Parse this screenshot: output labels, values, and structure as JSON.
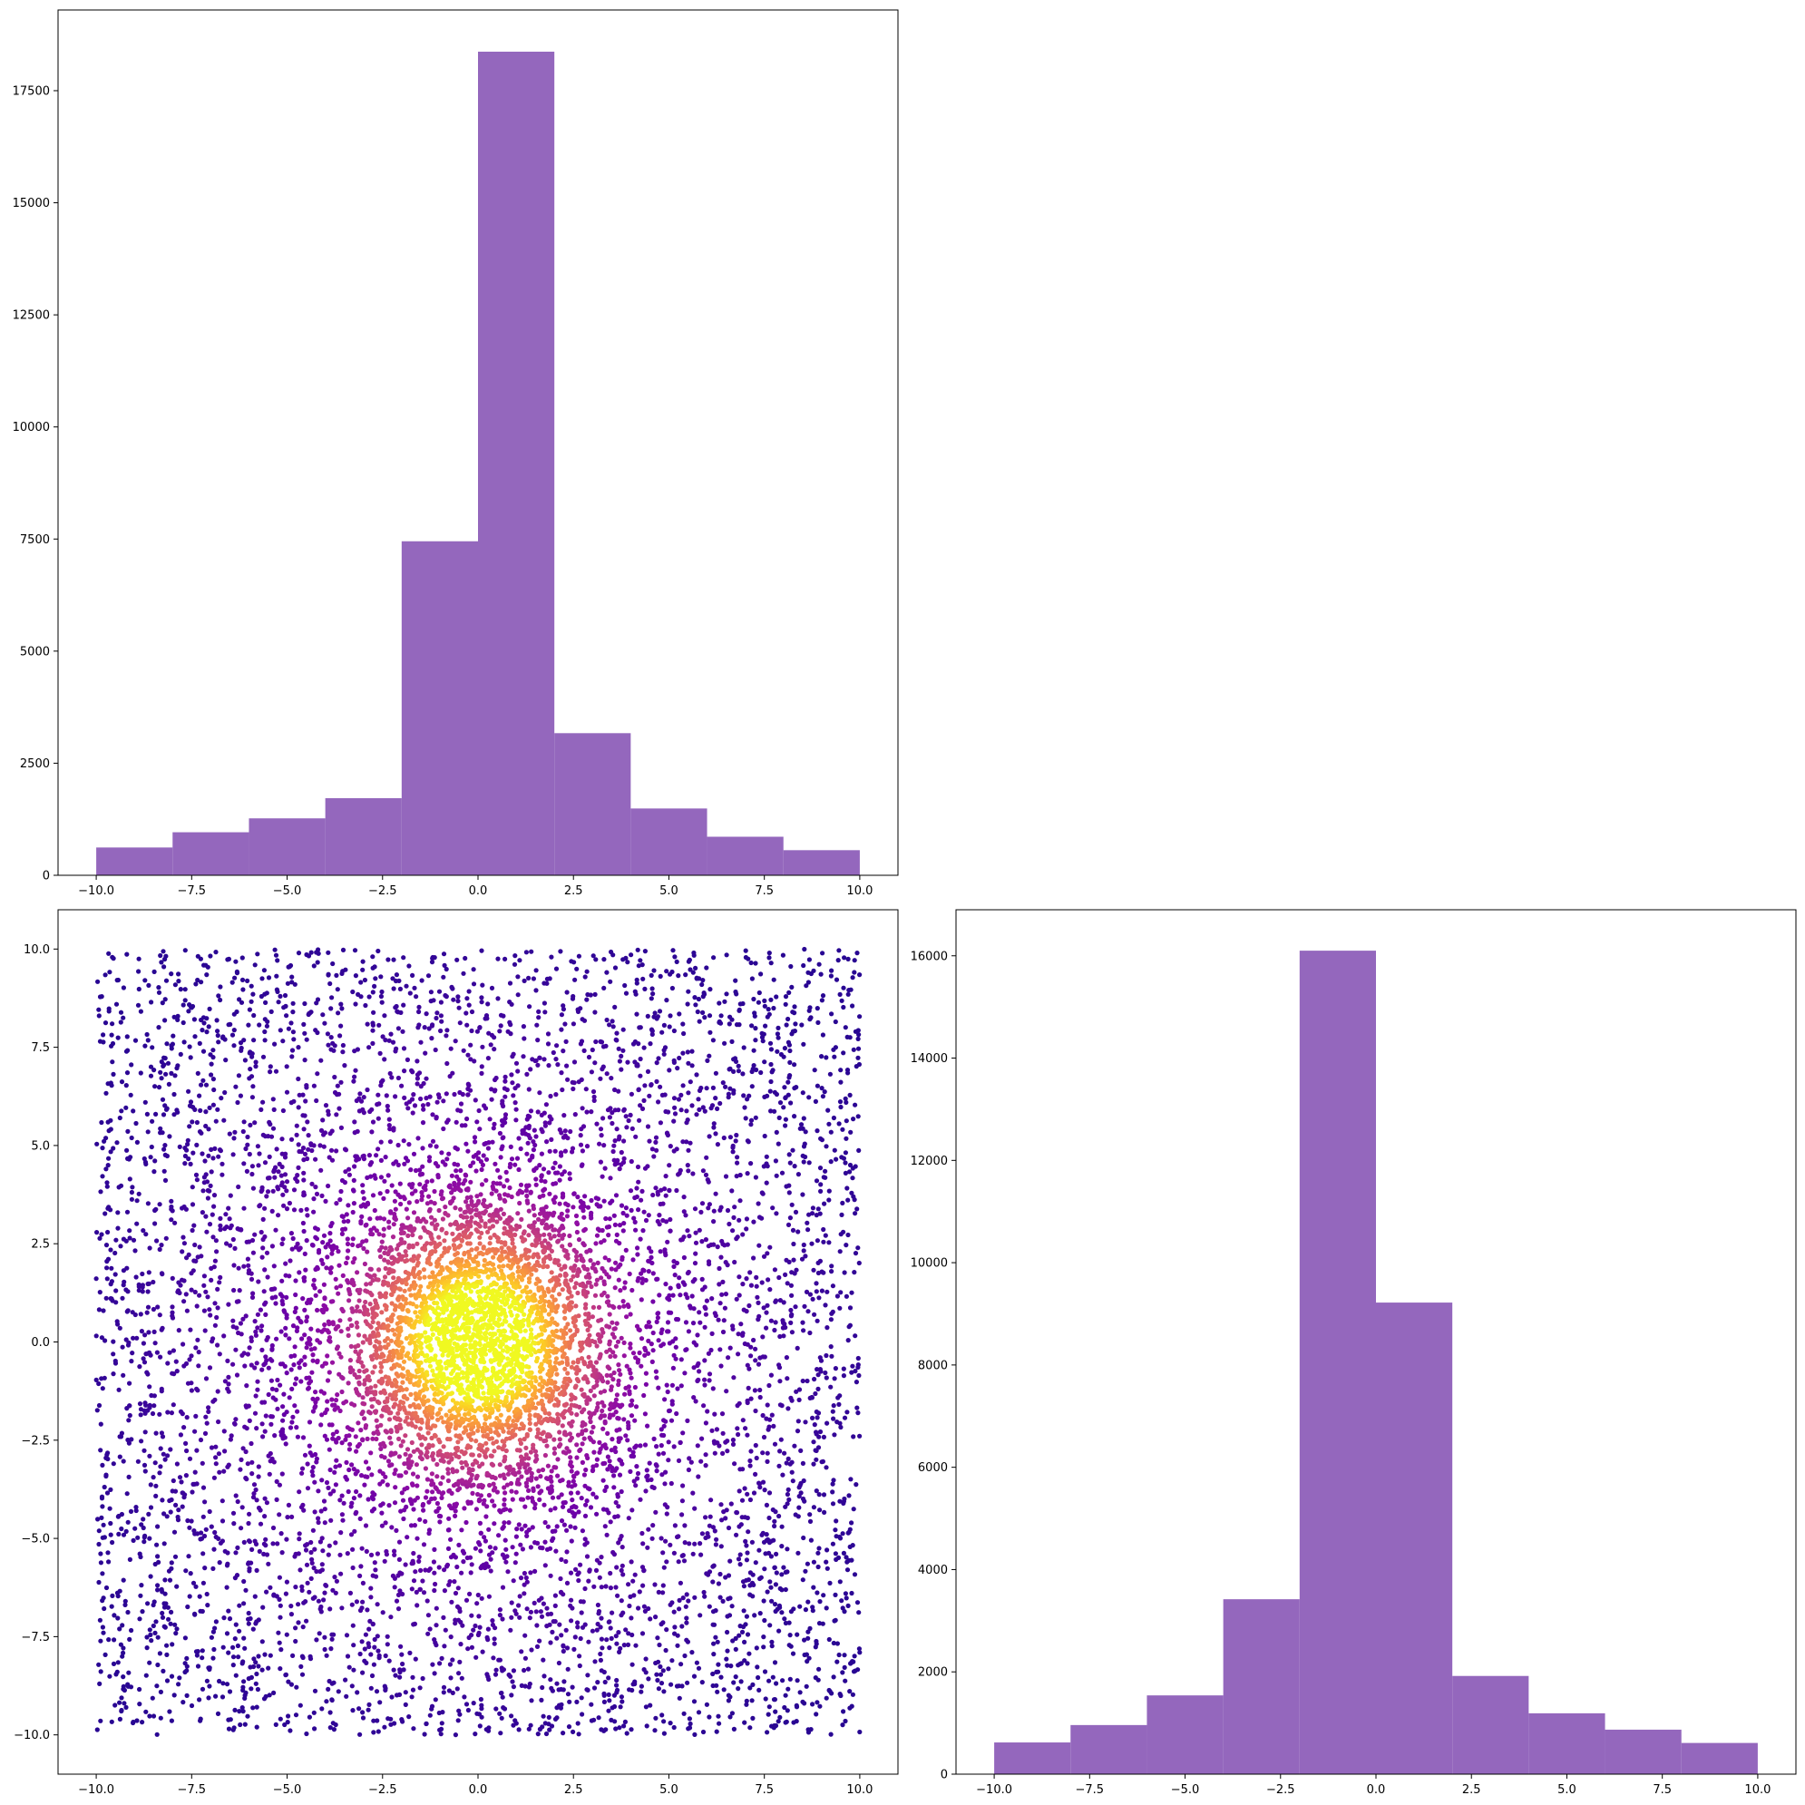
{
  "chart_data": [
    {
      "id": "top-left-histogram",
      "type": "bar",
      "title": "",
      "xlabel": "",
      "ylabel": "",
      "bin_edges": [
        -10,
        -8,
        -6,
        -4,
        -2,
        0,
        2,
        4,
        6,
        8,
        10
      ],
      "values": [
        620,
        960,
        1270,
        1720,
        7450,
        18370,
        3170,
        1490,
        860,
        560
      ],
      "xlim": [
        -11,
        11
      ],
      "ylim": [
        0,
        19300
      ],
      "xticks": [
        -10,
        -7.5,
        -5,
        -2.5,
        0,
        2.5,
        5,
        7.5,
        10
      ],
      "xtick_labels": [
        "−10.0",
        "−7.5",
        "−5.0",
        "−2.5",
        "0.0",
        "2.5",
        "5.0",
        "7.5",
        "10.0"
      ],
      "yticks": [
        0,
        2500,
        5000,
        7500,
        10000,
        12500,
        15000,
        17500
      ],
      "ytick_labels": [
        "0",
        "2500",
        "5000",
        "7500",
        "10000",
        "12500",
        "15000",
        "17500"
      ],
      "bar_color": "#9467bd",
      "grid": false
    },
    {
      "id": "bottom-left-scatter",
      "type": "scatter",
      "title": "",
      "xlabel": "",
      "ylabel": "",
      "xlim": [
        -11,
        11
      ],
      "ylim": [
        -11,
        11
      ],
      "xticks": [
        -10,
        -7.5,
        -5,
        -2.5,
        0,
        2.5,
        5,
        7.5,
        10
      ],
      "xtick_labels": [
        "−10.0",
        "−7.5",
        "−5.0",
        "−2.5",
        "0.0",
        "2.5",
        "5.0",
        "7.5",
        "10.0"
      ],
      "yticks": [
        -10,
        -7.5,
        -5,
        -2.5,
        0,
        2.5,
        5,
        7.5,
        10
      ],
      "ytick_labels": [
        "−10.0",
        "−7.5",
        "−5.0",
        "−2.5",
        "0.0",
        "2.5",
        "5.0",
        "7.5",
        "10.0"
      ],
      "colormap": "plasma",
      "point_count": 9000,
      "distribution": "uniform background in [-10,10] plus dense gaussian cluster centred at (0,0); color encodes local density",
      "grid": false
    },
    {
      "id": "bottom-right-histogram",
      "type": "bar",
      "title": "",
      "xlabel": "",
      "ylabel": "",
      "bin_edges": [
        -10,
        -8,
        -6,
        -4,
        -2,
        0,
        2,
        4,
        6,
        8,
        10
      ],
      "values": [
        620,
        960,
        1540,
        3420,
        16100,
        9220,
        1920,
        1190,
        870,
        610
      ],
      "xlim": [
        -11,
        11
      ],
      "ylim": [
        0,
        16900
      ],
      "xticks": [
        -10,
        -7.5,
        -5,
        -2.5,
        0,
        2.5,
        5,
        7.5,
        10
      ],
      "xtick_labels": [
        "−10.0",
        "−7.5",
        "−5.0",
        "−2.5",
        "0.0",
        "2.5",
        "5.0",
        "7.5",
        "10.0"
      ],
      "yticks": [
        0,
        2000,
        4000,
        6000,
        8000,
        10000,
        12000,
        14000,
        16000
      ],
      "ytick_labels": [
        "0",
        "2000",
        "4000",
        "6000",
        "8000",
        "10000",
        "12000",
        "14000",
        "16000"
      ],
      "bar_color": "#9467bd",
      "grid": false
    }
  ]
}
